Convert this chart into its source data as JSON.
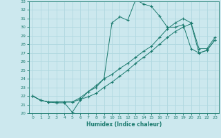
{
  "xlabel": "Humidex (Indice chaleur)",
  "xlim": [
    -0.5,
    23.5
  ],
  "ylim": [
    20,
    33
  ],
  "xticks": [
    0,
    1,
    2,
    3,
    4,
    5,
    6,
    7,
    8,
    9,
    10,
    11,
    12,
    13,
    14,
    15,
    16,
    17,
    18,
    19,
    20,
    21,
    22,
    23
  ],
  "yticks": [
    20,
    21,
    22,
    23,
    24,
    25,
    26,
    27,
    28,
    29,
    30,
    31,
    32,
    33
  ],
  "line_color": "#1a7a6e",
  "bg_color": "#cce8ee",
  "grid_color": "#b0d8e0",
  "line1_x": [
    0,
    1,
    2,
    3,
    4,
    5,
    6,
    7,
    8,
    9,
    10,
    11,
    12,
    13,
    14,
    15,
    16,
    17,
    18,
    19,
    20,
    21,
    22,
    23
  ],
  "line1_y": [
    22.0,
    21.5,
    21.3,
    21.2,
    21.2,
    20.1,
    21.5,
    22.5,
    23.0,
    24.0,
    30.5,
    31.2,
    30.8,
    33.2,
    32.7,
    32.4,
    31.3,
    30.0,
    30.0,
    30.3,
    27.5,
    27.0,
    27.3,
    28.5
  ],
  "line2_x": [
    0,
    1,
    2,
    3,
    4,
    5,
    6,
    7,
    8,
    9,
    10,
    11,
    12,
    13,
    14,
    15,
    16,
    17,
    18,
    19,
    20,
    21,
    22,
    23
  ],
  "line2_y": [
    22.0,
    21.5,
    21.3,
    21.3,
    21.3,
    21.3,
    21.6,
    21.9,
    22.3,
    23.0,
    23.6,
    24.3,
    25.0,
    25.8,
    26.5,
    27.2,
    28.0,
    28.8,
    29.5,
    30.0,
    30.4,
    27.0,
    27.3,
    28.5
  ],
  "line3_x": [
    0,
    1,
    2,
    3,
    4,
    5,
    6,
    7,
    8,
    9,
    10,
    11,
    12,
    13,
    14,
    15,
    16,
    17,
    18,
    19,
    20,
    21,
    22,
    23
  ],
  "line3_y": [
    22.0,
    21.5,
    21.3,
    21.3,
    21.3,
    21.3,
    21.8,
    22.5,
    23.2,
    24.0,
    24.5,
    25.2,
    25.8,
    26.5,
    27.2,
    27.8,
    28.8,
    29.8,
    30.5,
    31.0,
    30.5,
    27.5,
    27.5,
    28.8
  ]
}
